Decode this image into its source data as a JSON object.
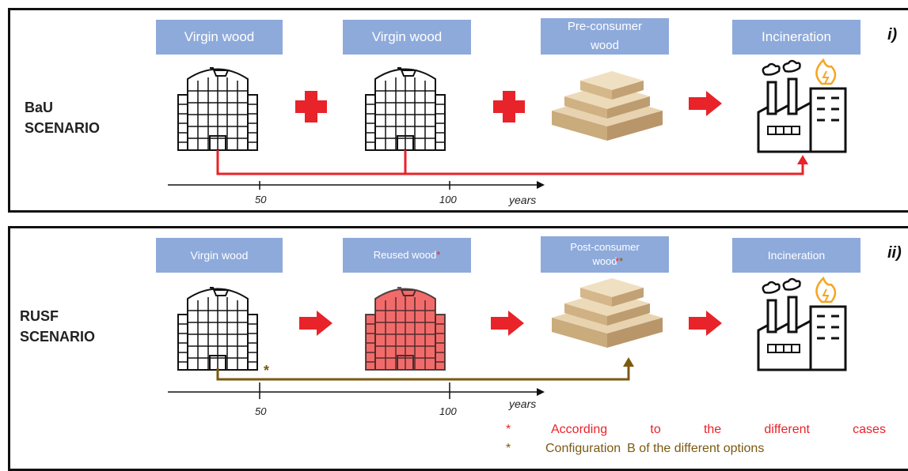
{
  "panel_i": {
    "roman": "i)",
    "scenario": [
      "BaU",
      "SCENARIO"
    ],
    "boxes": [
      "Virgin wood",
      "Virgin wood",
      "Pre-consumer\nwood",
      "Incineration"
    ],
    "ticks": [
      "50",
      "100"
    ],
    "years": "years"
  },
  "panel_ii": {
    "roman": "ii)",
    "scenario": [
      "RUSF",
      "SCENARIO"
    ],
    "boxes": [
      "Virgin wood",
      "Reused wood",
      "Post-consumer\nwood",
      "Incineration"
    ],
    "reused_mark": "*",
    "post_marks": [
      "*",
      "*"
    ],
    "branch_mark": "*",
    "ticks": [
      "50",
      "100"
    ],
    "years": "years"
  },
  "legend": [
    {
      "mark": "*",
      "words": [
        "According",
        "to",
        "the",
        "different",
        "cases"
      ],
      "color": "#e8232a"
    },
    {
      "mark": "*",
      "words": [
        "Configuration",
        "B of the different options"
      ],
      "color": "#7a5a10"
    }
  ],
  "colors": {
    "box": "#8eaadb",
    "red": "#e8232a",
    "brown": "#7a5a10",
    "reused_fill": "#f26b6b"
  }
}
